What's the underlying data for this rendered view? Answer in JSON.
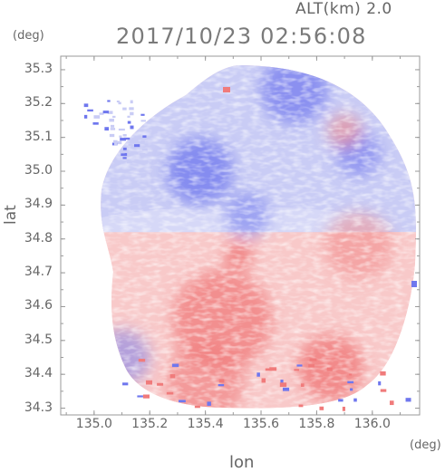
{
  "header": {
    "alt_label": "ALT(km)  2.0",
    "timestamp": "2017/10/23 02:56:08"
  },
  "axes": {
    "y_unit": "(deg)",
    "x_unit": "(deg)",
    "y_label": "lat",
    "x_label": "lon",
    "y_ticks": [
      "35.3",
      "35.2",
      "35.1",
      "35.0",
      "34.9",
      "34.8",
      "34.7",
      "34.6",
      "34.5",
      "34.4",
      "34.3"
    ],
    "x_ticks": [
      "135.0",
      "135.2",
      "135.4",
      "135.6",
      "135.8",
      "136.0"
    ]
  },
  "map": {
    "lon_range": [
      134.88,
      136.17
    ],
    "lat_range": [
      34.28,
      35.34
    ],
    "radar_center": {
      "lon": 135.52,
      "lat": 34.82
    },
    "colors": {
      "approach": "#6f77ee",
      "approach_light": "#c9ccf5",
      "recede": "#f07b7b",
      "recede_light": "#f8c9c9",
      "frame": "#9a9a9a"
    },
    "regions": [
      {
        "kind": "recede",
        "strength": 0.75,
        "center": {
          "lon": 135.46,
          "lat": 34.56
        },
        "radius_deg": 0.18
      },
      {
        "kind": "recede",
        "strength": 0.9,
        "center": {
          "lon": 135.52,
          "lat": 34.75
        },
        "radius_deg": 0.05
      },
      {
        "kind": "recede",
        "strength": 0.8,
        "center": {
          "lon": 135.85,
          "lat": 34.42
        },
        "radius_deg": 0.12
      },
      {
        "kind": "recede",
        "strength": 0.6,
        "center": {
          "lon": 135.4,
          "lat": 34.38
        },
        "radius_deg": 0.14
      },
      {
        "kind": "recede",
        "strength": 0.45,
        "center": {
          "lon": 135.95,
          "lat": 34.78
        },
        "radius_deg": 0.12
      },
      {
        "kind": "approach",
        "strength": 0.75,
        "center": {
          "lon": 135.38,
          "lat": 35.0
        },
        "radius_deg": 0.12
      },
      {
        "kind": "approach",
        "strength": 0.7,
        "center": {
          "lon": 135.72,
          "lat": 35.24
        },
        "radius_deg": 0.12
      },
      {
        "kind": "approach",
        "strength": 0.55,
        "center": {
          "lon": 135.55,
          "lat": 34.87
        },
        "radius_deg": 0.08
      },
      {
        "kind": "approach",
        "strength": 0.5,
        "center": {
          "lon": 135.1,
          "lat": 34.45
        },
        "radius_deg": 0.1
      },
      {
        "kind": "approach",
        "strength": 0.6,
        "center": {
          "lon": 135.95,
          "lat": 35.05
        },
        "radius_deg": 0.08
      },
      {
        "kind": "recede",
        "strength": 0.55,
        "center": {
          "lon": 135.9,
          "lat": 35.12
        },
        "radius_deg": 0.06
      }
    ]
  }
}
